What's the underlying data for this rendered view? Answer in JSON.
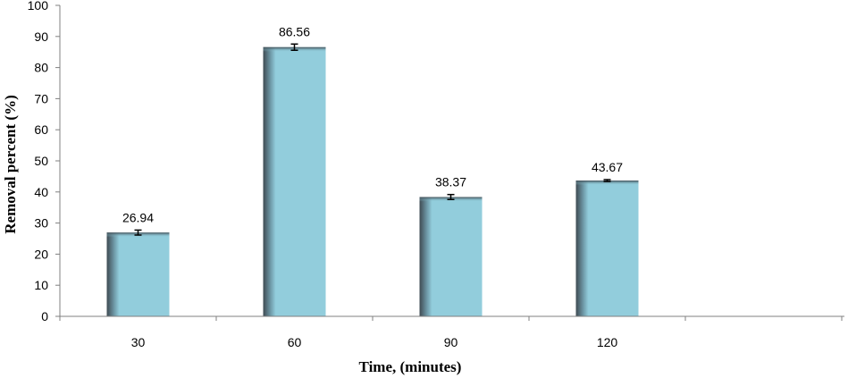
{
  "chart_data": {
    "type": "bar",
    "categories": [
      "30",
      "60",
      "90",
      "120"
    ],
    "values": [
      26.94,
      86.56,
      38.37,
      43.67
    ],
    "data_labels": [
      "26.94",
      "86.56",
      "38.37",
      "43.67"
    ],
    "error": [
      0.8,
      1.0,
      0.8,
      0.3
    ],
    "xlabel": "Time, (minutes)",
    "ylabel": "Removal percent (%)",
    "ylim": [
      0,
      100
    ],
    "yticks": [
      "0",
      "10",
      "20",
      "30",
      "40",
      "50",
      "60",
      "70",
      "80",
      "90",
      "100"
    ],
    "grid": false,
    "legend": "none",
    "bar_color": "#92CDDC",
    "bar_shadow_color": "#4A5A63"
  }
}
